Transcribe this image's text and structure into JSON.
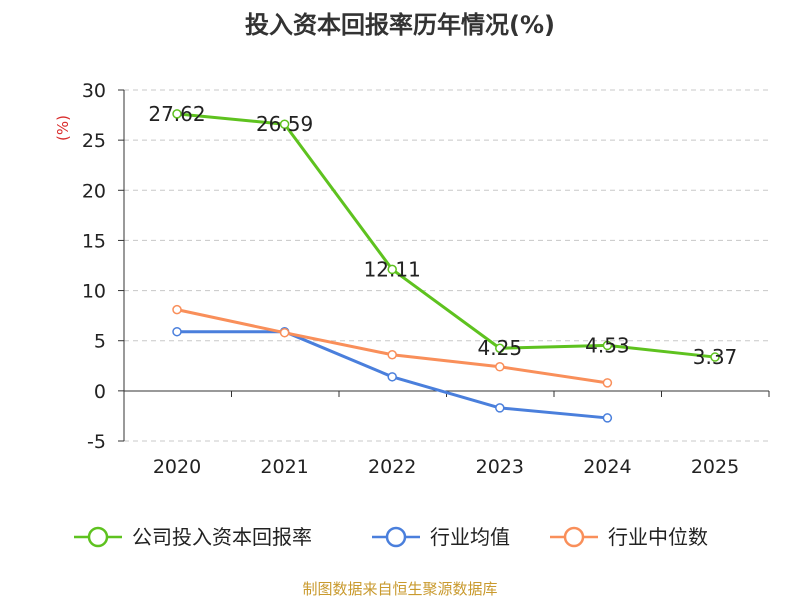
{
  "chart_data": {
    "type": "line",
    "title": "投入资本回报率历年情况(%)",
    "ylabel": "(%)",
    "xlabel": "",
    "categories": [
      "2020",
      "2021",
      "2022",
      "2023",
      "2024",
      "2025"
    ],
    "ylim": [
      -5,
      30
    ],
    "yticks": [
      -5,
      0,
      5,
      10,
      15,
      20,
      25,
      30
    ],
    "ytick_labels": [
      "-5",
      "0",
      "5",
      "10",
      "15",
      "20",
      "25",
      "30"
    ],
    "grid": true,
    "legend_position": "bottom",
    "series": [
      {
        "name": "公司投入资本回报率",
        "color": "#5ec21f",
        "values": [
          27.62,
          26.59,
          12.11,
          4.25,
          4.53,
          3.37
        ],
        "labels": [
          "27.62",
          "26.59",
          "12.11",
          "4.25",
          "4.53",
          "3.37"
        ]
      },
      {
        "name": "行业均值",
        "color": "#4a7fdc",
        "values": [
          5.9,
          5.9,
          1.4,
          -1.7,
          -2.7,
          null
        ]
      },
      {
        "name": "行业中位数",
        "color": "#f98f5a",
        "values": [
          8.1,
          5.8,
          3.6,
          2.4,
          0.8,
          null
        ]
      }
    ]
  },
  "source": "制图数据来自恒生聚源数据库",
  "colors": {
    "ylabel": "#d92b2b",
    "source": "#c99a2e",
    "grid": "#c8c8c8",
    "axis": "#333333"
  }
}
